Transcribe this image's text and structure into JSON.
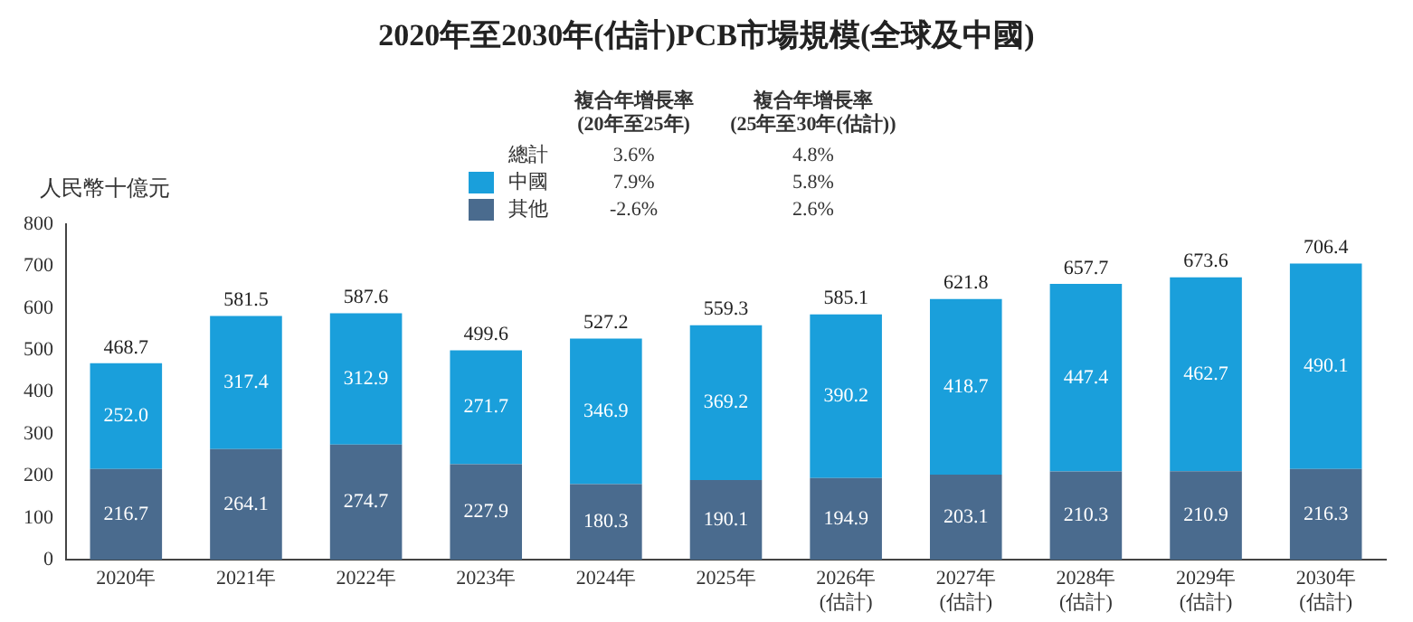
{
  "chart_data": {
    "type": "bar",
    "stacked": true,
    "title": "2020年至2030年(估計)PCB市場規模(全球及中國)",
    "ylabel": "人民幣十億元",
    "categories": [
      "2020年",
      "2021年",
      "2022年",
      "2023年",
      "2024年",
      "2025年",
      "2026年\n(估計)",
      "2027年\n(估計)",
      "2028年\n(估計)",
      "2029年\n(估計)",
      "2030年\n(估計)"
    ],
    "series": [
      {
        "name": "其他",
        "color": "#4a6b8e",
        "values": [
          216.7,
          264.1,
          274.7,
          227.9,
          180.3,
          190.1,
          194.9,
          203.1,
          210.3,
          210.9,
          216.3
        ],
        "value_labels": [
          "216.7",
          "264.1",
          "274.7",
          "227.9",
          "180.3",
          "190.1",
          "194.9",
          "203.1",
          "210.3",
          "210.9",
          "216.3"
        ]
      },
      {
        "name": "中國",
        "color": "#1a9fdb",
        "values": [
          252.0,
          317.4,
          312.9,
          271.7,
          346.9,
          369.2,
          390.2,
          418.7,
          447.4,
          462.7,
          490.1
        ],
        "value_labels": [
          "252.0",
          "317.4",
          "312.9",
          "271.7",
          "346.9",
          "369.2",
          "390.2",
          "418.7",
          "447.4",
          "462.7",
          "490.1"
        ]
      }
    ],
    "totals": [
      "468.7",
      "581.5",
      "587.6",
      "499.6",
      "527.2",
      "559.3",
      "585.1",
      "621.8",
      "657.7",
      "673.6",
      "706.4"
    ],
    "ylim": [
      0,
      800
    ],
    "yticks": [
      0,
      100,
      200,
      300,
      400,
      500,
      600,
      700,
      800
    ],
    "grid": false,
    "legend": "top",
    "annotations": [
      "複合年增長率\n(20年至25年)",
      "複合年增長率\n(25年至30年(估計))",
      "總計",
      "3.6%",
      "4.8%",
      "7.9%",
      "5.8%",
      "-2.6%",
      "2.6%"
    ]
  }
}
